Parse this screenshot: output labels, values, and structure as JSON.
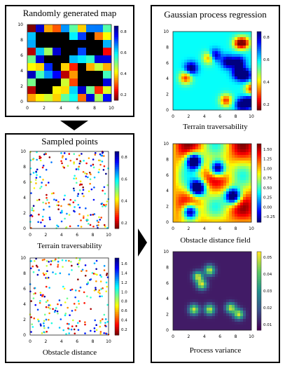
{
  "left_top_panel": {
    "title": "Randomly generated map",
    "plot": {
      "x_ticks": [
        "0",
        "2",
        "4",
        "6",
        "8",
        "10"
      ],
      "y_ticks": [
        "0",
        "2",
        "4",
        "6",
        "8",
        "10"
      ],
      "cbar_ticks": [
        "0.2",
        "0.4",
        "0.6",
        "0.8"
      ]
    }
  },
  "left_bottom_panel": {
    "title": "Sampled points",
    "plot1": {
      "caption": "Terrain traversability",
      "x_ticks": [
        "0",
        "2",
        "4",
        "6",
        "8",
        "10"
      ],
      "y_ticks": [
        "0",
        "2",
        "4",
        "6",
        "8",
        "10"
      ],
      "cbar_ticks": [
        "0.2",
        "0.4",
        "0.6",
        "0.8"
      ]
    },
    "plot2": {
      "caption": "Obstacle distance",
      "x_ticks": [
        "0",
        "2",
        "4",
        "6",
        "8",
        "10"
      ],
      "y_ticks": [
        "0",
        "2",
        "4",
        "6",
        "8",
        "10"
      ],
      "cbar_ticks": [
        "0.2",
        "0.4",
        "0.6",
        "0.8",
        "1.0",
        "1.2",
        "1.4",
        "1.6"
      ]
    }
  },
  "right_panel": {
    "title": "Gaussian process regression",
    "plot1": {
      "caption": "Terrain traversability",
      "x_ticks": [
        "0",
        "2",
        "4",
        "6",
        "8",
        "10"
      ],
      "y_ticks": [
        "0",
        "2",
        "4",
        "6",
        "8",
        "10"
      ],
      "cbar_ticks": [
        "0.2",
        "0.4",
        "0.6",
        "0.8"
      ]
    },
    "plot2": {
      "caption": "Obstacle distance field",
      "x_ticks": [
        "0",
        "2",
        "4",
        "6",
        "8",
        "10"
      ],
      "y_ticks": [
        "0",
        "2",
        "4",
        "6",
        "8",
        "10"
      ],
      "cbar_ticks": [
        "−0.25",
        "0.00",
        "0.25",
        "0.50",
        "0.75",
        "1.00",
        "1.25",
        "1.50"
      ]
    },
    "plot3": {
      "caption": "Process variance",
      "x_ticks": [
        "0",
        "2",
        "4",
        "6",
        "8",
        "10"
      ],
      "y_ticks": [
        "0",
        "2",
        "4",
        "6",
        "8",
        "10"
      ],
      "cbar_ticks": [
        "0.01",
        "0.02",
        "0.03",
        "0.04",
        "0.05"
      ]
    }
  },
  "arrows": {
    "down": "down-arrow",
    "right": "right-arrow"
  },
  "colors": {
    "jet_low": "#b30000",
    "jet_high": "#000090",
    "viridis_low": "#440154",
    "viridis_high": "#fde725",
    "obstacle": "#000000"
  }
}
